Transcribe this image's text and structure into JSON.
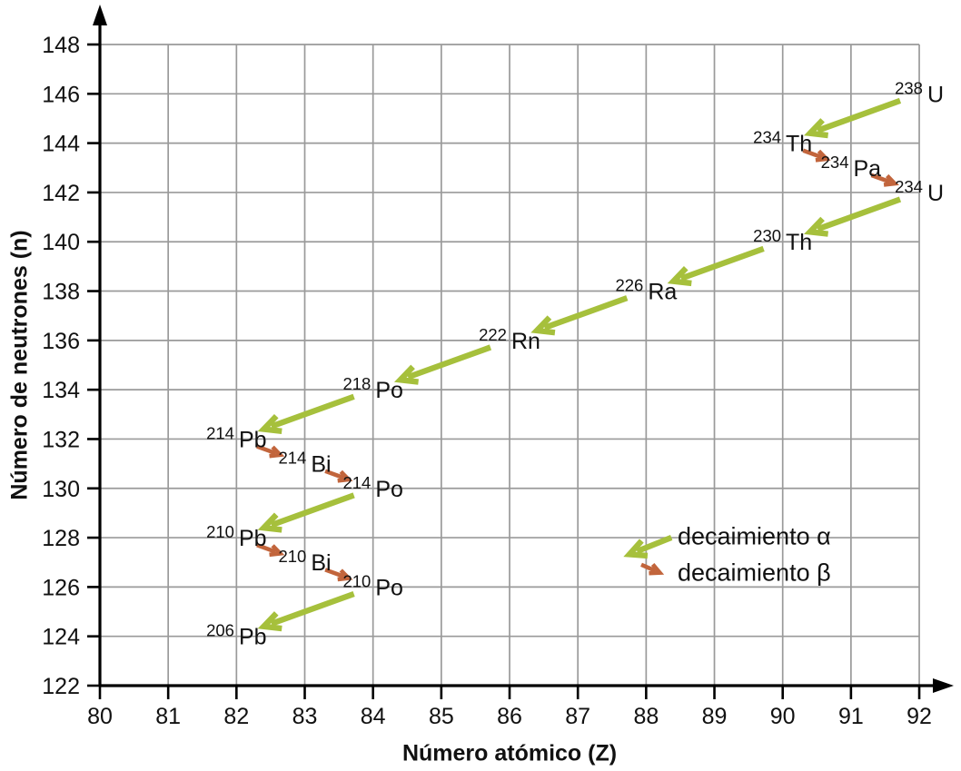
{
  "chart_data": {
    "type": "scatter",
    "title": "",
    "xlabel": "Número atómico (Z)",
    "ylabel": "Número de neutrones (n)",
    "xlim": [
      80,
      92
    ],
    "ylim": [
      122,
      148
    ],
    "x_ticks": [
      80,
      81,
      82,
      83,
      84,
      85,
      86,
      87,
      88,
      89,
      90,
      91,
      92
    ],
    "y_ticks": [
      122,
      124,
      126,
      128,
      130,
      132,
      134,
      136,
      138,
      140,
      142,
      144,
      146,
      148
    ],
    "grid": true,
    "legend_position": "inside-lower-right",
    "colors": {
      "alpha_decay": "#a6c03c",
      "beta_decay": "#c2653c",
      "gridline": "#9a9a9a",
      "axis": "#000000",
      "text": "#111111",
      "background": "#ffffff"
    },
    "isotopes": [
      {
        "mass": "238",
        "symbol": "U",
        "Z": 92,
        "n": 146
      },
      {
        "mass": "234",
        "symbol": "Th",
        "Z": 90,
        "n": 144
      },
      {
        "mass": "234",
        "symbol": "Pa",
        "Z": 91,
        "n": 143
      },
      {
        "mass": "234",
        "symbol": "U",
        "Z": 92,
        "n": 142
      },
      {
        "mass": "230",
        "symbol": "Th",
        "Z": 90,
        "n": 140
      },
      {
        "mass": "226",
        "symbol": "Ra",
        "Z": 88,
        "n": 138
      },
      {
        "mass": "222",
        "symbol": "Rn",
        "Z": 86,
        "n": 136
      },
      {
        "mass": "218",
        "symbol": "Po",
        "Z": 84,
        "n": 134
      },
      {
        "mass": "214",
        "symbol": "Pb",
        "Z": 82,
        "n": 132
      },
      {
        "mass": "214",
        "symbol": "Bi",
        "Z": 83,
        "n": 131
      },
      {
        "mass": "214",
        "symbol": "Po",
        "Z": 84,
        "n": 130
      },
      {
        "mass": "210",
        "symbol": "Pb",
        "Z": 82,
        "n": 128
      },
      {
        "mass": "210",
        "symbol": "Bi",
        "Z": 83,
        "n": 127
      },
      {
        "mass": "210",
        "symbol": "Po",
        "Z": 84,
        "n": 126
      },
      {
        "mass": "206",
        "symbol": "Pb",
        "Z": 82,
        "n": 124
      }
    ],
    "decays": [
      {
        "from": 0,
        "to": 1,
        "type": "alpha"
      },
      {
        "from": 1,
        "to": 2,
        "type": "beta"
      },
      {
        "from": 2,
        "to": 3,
        "type": "beta"
      },
      {
        "from": 3,
        "to": 4,
        "type": "alpha"
      },
      {
        "from": 4,
        "to": 5,
        "type": "alpha"
      },
      {
        "from": 5,
        "to": 6,
        "type": "alpha"
      },
      {
        "from": 6,
        "to": 7,
        "type": "alpha"
      },
      {
        "from": 7,
        "to": 8,
        "type": "alpha"
      },
      {
        "from": 8,
        "to": 9,
        "type": "beta"
      },
      {
        "from": 9,
        "to": 10,
        "type": "beta"
      },
      {
        "from": 10,
        "to": 11,
        "type": "alpha"
      },
      {
        "from": 11,
        "to": 12,
        "type": "beta"
      },
      {
        "from": 12,
        "to": 13,
        "type": "beta"
      },
      {
        "from": 13,
        "to": 14,
        "type": "alpha"
      }
    ],
    "legend": [
      {
        "id": "alpha",
        "label": "decaimiento α"
      },
      {
        "id": "beta",
        "label": "decaimiento β"
      }
    ]
  }
}
